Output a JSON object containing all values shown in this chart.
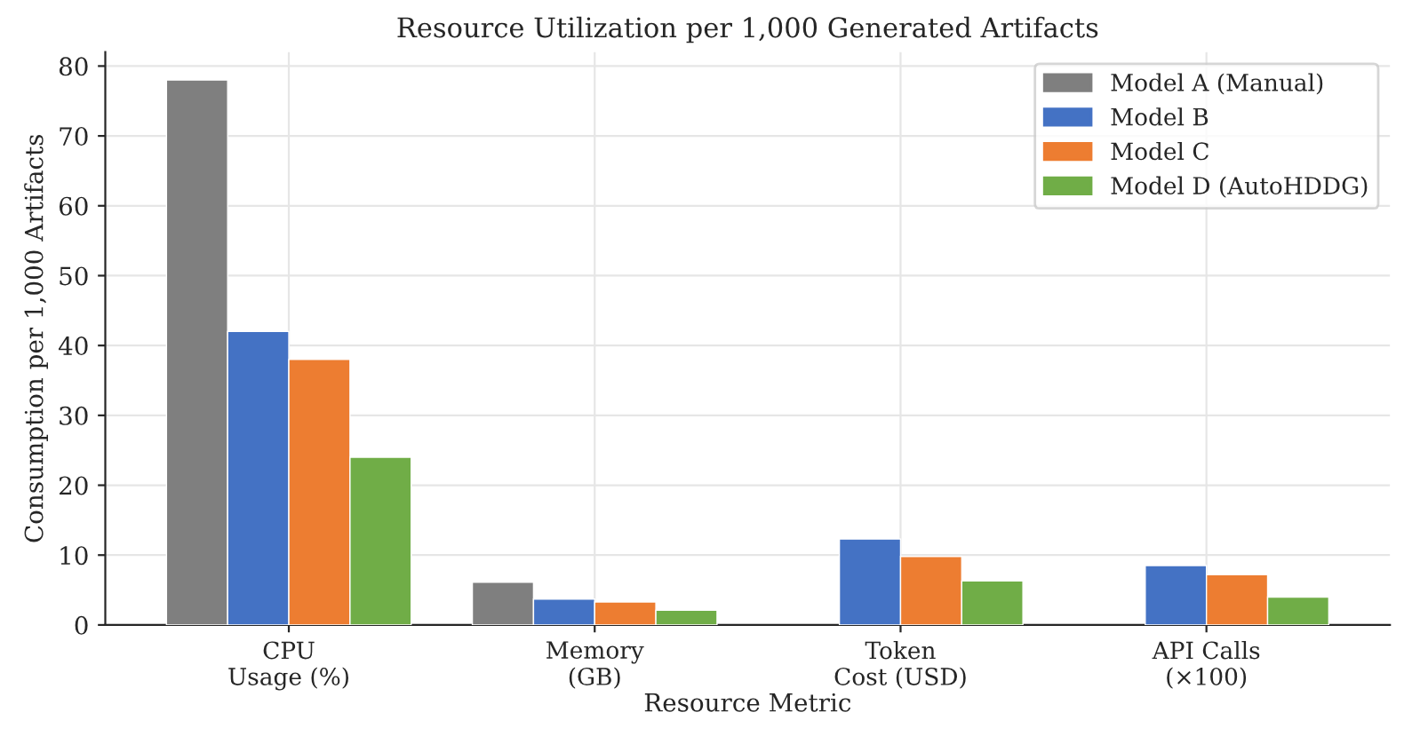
{
  "chart_data": {
    "type": "bar",
    "title": "Resource Utilization per 1,000 Generated Artifacts",
    "xlabel": "Resource Metric",
    "ylabel": "Consumption per 1,000 Artifacts",
    "categories": [
      "CPU\nUsage (%)",
      "Memory\n(GB)",
      "Token\nCost (USD)",
      "API Calls\n(×100)"
    ],
    "series": [
      {
        "name": "Model A (Manual)",
        "color": "#7f7f7f",
        "values": [
          78,
          6.1,
          null,
          null
        ]
      },
      {
        "name": "Model B",
        "color": "#4472c4",
        "values": [
          42,
          3.7,
          12.3,
          8.5
        ]
      },
      {
        "name": "Model C",
        "color": "#ed7d31",
        "values": [
          38,
          3.3,
          9.8,
          7.2
        ]
      },
      {
        "name": "Model D (AutoHDDG)",
        "color": "#70ad47",
        "values": [
          24,
          2.1,
          6.3,
          4.0
        ]
      }
    ],
    "ylim": [
      0,
      82
    ],
    "yticks": [
      0,
      10,
      20,
      30,
      40,
      50,
      60,
      70,
      80
    ],
    "grid": true,
    "legend": "top right"
  }
}
